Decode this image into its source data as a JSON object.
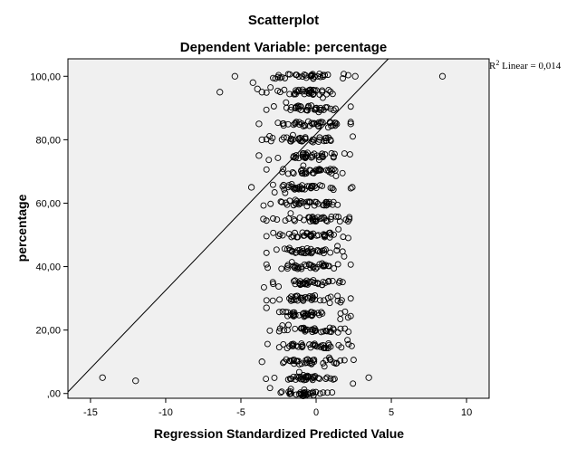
{
  "chart_data": {
    "type": "scatter",
    "title": "Scatterplot",
    "subtitle": "Dependent Variable: percentage",
    "xlabel": "Regression Standardized Predicted Value",
    "ylabel": "percentage",
    "xlim": [
      -16.5,
      11.5
    ],
    "ylim": [
      -1.5,
      105.5
    ],
    "x_ticks": [
      -15,
      -10,
      -5,
      0,
      5,
      10
    ],
    "x_tick_labels": [
      "-15",
      "-10",
      "-5",
      "0",
      "5",
      "10"
    ],
    "y_ticks": [
      0,
      20,
      40,
      60,
      80,
      100
    ],
    "y_tick_labels": [
      ",00",
      "20,00",
      "40,00",
      "60,00",
      "80,00",
      "100,00"
    ],
    "fit_line": {
      "label": "R² Linear = 0,014",
      "r2_prefix": "R",
      "r2_sup": "2",
      "r2_text": " Linear = 0,014",
      "points": [
        [
          -16.5,
          0.5
        ],
        [
          4.8,
          105.5
        ]
      ]
    },
    "grid": false,
    "plot_background": "#f0f0f0",
    "series": [
      {
        "outliers": [
          {
            "x": -14.2,
            "y": 5
          },
          {
            "x": -12.0,
            "y": 4
          },
          {
            "x": -6.4,
            "y": 95
          },
          {
            "x": -5.4,
            "y": 100
          },
          {
            "x": -4.2,
            "y": 98
          },
          {
            "x": -3.9,
            "y": 96
          },
          {
            "x": -3.6,
            "y": 95
          },
          {
            "x": -3.8,
            "y": 85
          },
          {
            "x": -3.6,
            "y": 80
          },
          {
            "x": -3.8,
            "y": 75
          },
          {
            "x": -4.3,
            "y": 65
          },
          {
            "x": -3.5,
            "y": 55
          },
          {
            "x": -3.3,
            "y": 27
          },
          {
            "x": -3.6,
            "y": 10
          },
          {
            "x": 3.5,
            "y": 5
          },
          {
            "x": 8.4,
            "y": 100
          },
          {
            "x": 2.6,
            "y": 100
          },
          {
            "x": 2.3,
            "y": 85
          },
          {
            "x": 2.4,
            "y": 65
          },
          {
            "x": 2.2,
            "y": 55
          }
        ],
        "y_levels": [
          0,
          5,
          10,
          15,
          20,
          25,
          30,
          35,
          40,
          45,
          50,
          55,
          60,
          65,
          70,
          75,
          80,
          85,
          90,
          95,
          100
        ],
        "dense_x_range": [
          -3.0,
          2.0
        ]
      }
    ]
  }
}
